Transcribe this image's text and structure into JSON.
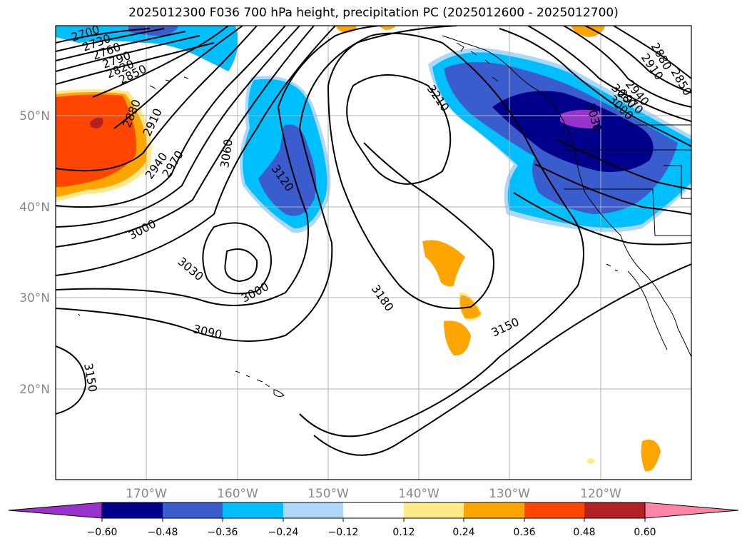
{
  "title": "2025012300 F036 700 hPa height, precipitation PC (2025012600 - 2025012700)",
  "lat_labels": [
    "50°N",
    "40°N",
    "30°N",
    "20°N"
  ],
  "lon_labels": [
    "170°W",
    "160°W",
    "150°W",
    "140°W",
    "130°W",
    "120°W"
  ],
  "contour_labels": [
    "2700",
    "2730",
    "2760",
    "2790",
    "2820",
    "2850",
    "2850",
    "2880",
    "2910",
    "2940",
    "2940",
    "2970",
    "2970",
    "3000",
    "3000",
    "3030",
    "3000",
    "3060",
    "3090",
    "3120",
    "3150",
    "3150",
    "3180",
    "3210",
    "3030",
    "3060",
    "2880",
    "2910"
  ],
  "colorbar": {
    "colors": [
      "#9932cc",
      "#00008b",
      "#3a5ccc",
      "#00bfff",
      "#add8f7",
      "#ffffff",
      "#ffe98a",
      "#ffa500",
      "#ff4500",
      "#b22222",
      "#ff85a8"
    ],
    "tick_labels": [
      "−0.60",
      "−0.48",
      "−0.36",
      "−0.24",
      "−0.12",
      "0.12",
      "0.24",
      "0.36",
      "0.48",
      "0.60"
    ]
  }
}
